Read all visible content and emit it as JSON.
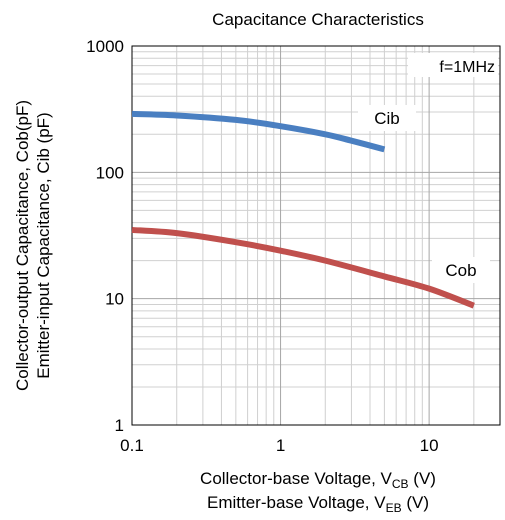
{
  "chart_data": {
    "type": "line",
    "title": "Capacitance Characteristics",
    "xlabel_lines": [
      {
        "text": "Collector-base Voltage, V",
        "sub": "CB",
        "tail": " (V)"
      },
      {
        "text": "Emitter-base Voltage, V",
        "sub": "EB",
        "tail": " (V)"
      }
    ],
    "ylabel_lines": [
      "Collector-output Capacitance, Cob(pF)",
      "Emitter-input Capacitance, Cib (pF)"
    ],
    "xscale": "log",
    "yscale": "log",
    "xlim": [
      0.1,
      30
    ],
    "ylim": [
      1,
      1000
    ],
    "xticks": [
      {
        "value": 0.1,
        "label": "0.1"
      },
      {
        "value": 1,
        "label": "1"
      },
      {
        "value": 10,
        "label": "10"
      }
    ],
    "yticks": [
      {
        "value": 1,
        "label": "1"
      },
      {
        "value": 10,
        "label": "10"
      },
      {
        "value": 100,
        "label": "100"
      },
      {
        "value": 1000,
        "label": "1000"
      }
    ],
    "grid": true,
    "annotation": "f=1MHz",
    "series": [
      {
        "name": "Cib",
        "color": "#4a7fc1",
        "points": [
          [
            0.1,
            290
          ],
          [
            0.2,
            282
          ],
          [
            0.5,
            260
          ],
          [
            1,
            232
          ],
          [
            2,
            200
          ],
          [
            3,
            178
          ],
          [
            5,
            152
          ]
        ]
      },
      {
        "name": "Cob",
        "color": "#c0504d",
        "points": [
          [
            0.1,
            35
          ],
          [
            0.2,
            33
          ],
          [
            0.5,
            28
          ],
          [
            1,
            24
          ],
          [
            2,
            20
          ],
          [
            5,
            15
          ],
          [
            10,
            12
          ],
          [
            20,
            8.8
          ]
        ]
      }
    ]
  }
}
